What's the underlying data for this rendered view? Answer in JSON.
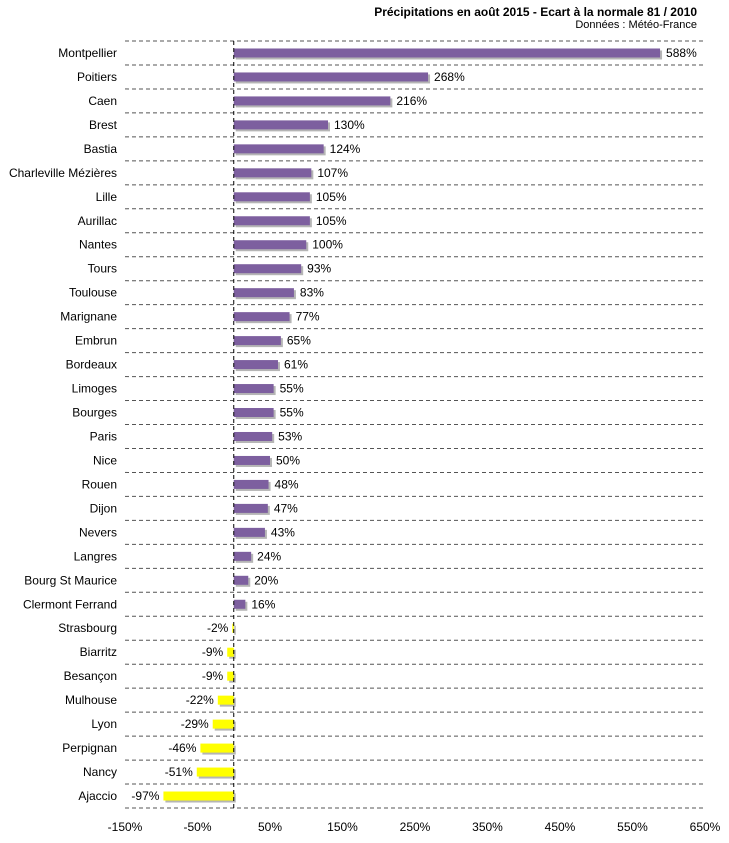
{
  "header": {
    "title": "Précipitations en août 2015 - Ecart à la normale 81 / 2010",
    "source": "Données : Météo-France"
  },
  "colors": {
    "positive": "#7d5f9f",
    "negative": "#ffff00",
    "shadow": "#b5b5b5",
    "grid": "#555555"
  },
  "chart_data": {
    "type": "bar",
    "orientation": "horizontal",
    "title": "Précipitations en août 2015 - Ecart à la normale 81 / 2010",
    "subtitle": "Données : Météo-France",
    "xlabel": "",
    "ylabel": "",
    "xlim": [
      -150,
      650
    ],
    "xticks": [
      -150,
      -50,
      50,
      150,
      250,
      350,
      450,
      550,
      650
    ],
    "xtick_labels": [
      "-150%",
      "-50%",
      "50%",
      "150%",
      "250%",
      "350%",
      "450%",
      "550%",
      "650%"
    ],
    "grid": "horizontal dashed",
    "categories": [
      "Montpellier",
      "Poitiers",
      "Caen",
      "Brest",
      "Bastia",
      "Charleville Mézières",
      "Lille",
      "Aurillac",
      "Nantes",
      "Tours",
      "Toulouse",
      "Marignane",
      "Embrun",
      "Bordeaux",
      "Limoges",
      "Bourges",
      "Paris",
      "Nice",
      "Rouen",
      "Dijon",
      "Nevers",
      "Langres",
      "Bourg St Maurice",
      "Clermont Ferrand",
      "Strasbourg",
      "Biarritz",
      "Besançon",
      "Mulhouse",
      "Lyon",
      "Perpignan",
      "Nancy",
      "Ajaccio"
    ],
    "values": [
      588,
      268,
      216,
      130,
      124,
      107,
      105,
      105,
      100,
      93,
      83,
      77,
      65,
      61,
      55,
      55,
      53,
      50,
      48,
      47,
      43,
      24,
      20,
      16,
      -2,
      -9,
      -9,
      -22,
      -29,
      -46,
      -51,
      -97
    ],
    "labels": [
      "588%",
      "268%",
      "216%",
      "130%",
      "124%",
      "107%",
      "105%",
      "105%",
      "100%",
      "93%",
      "83%",
      "77%",
      "65%",
      "61%",
      "55%",
      "55%",
      "53%",
      "50%",
      "48%",
      "47%",
      "43%",
      "24%",
      "20%",
      "16%",
      "-2%",
      "-9%",
      "-9%",
      "-22%",
      "-29%",
      "-46%",
      "-51%",
      "-97%"
    ]
  }
}
